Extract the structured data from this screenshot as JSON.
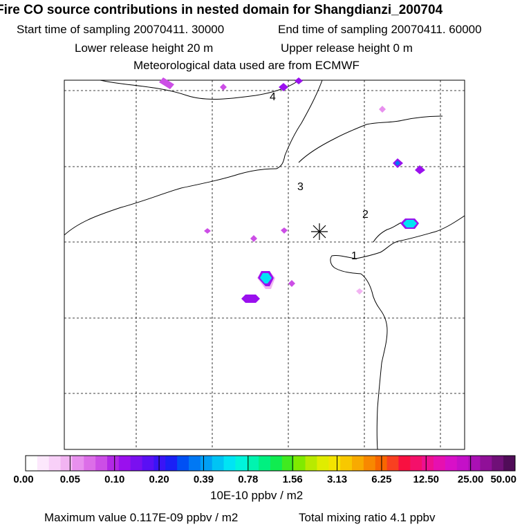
{
  "header": {
    "title": "Fire CO source contributions in nested domain for Shangdianzi_200704",
    "start_time": "Start time of sampling 20070411. 30000",
    "end_time": "End time of sampling 20070411. 60000",
    "lower_release": "Lower release height   20 m",
    "upper_release": "Upper release height    0 m",
    "met_data": "Meteorological data used are from ECMWF"
  },
  "footer": {
    "max_value": "Maximum value  0.117E-09 ppbv / m2",
    "total_mixing": "Total mixing ratio       4.1 ppbv"
  },
  "colorbar": {
    "units": "10E-10 ppbv / m2",
    "labels": [
      "0.00",
      "0.05",
      "0.10",
      "0.20",
      "0.39",
      "0.78",
      "1.56",
      "3.13",
      "6.25",
      "12.50",
      "25.00",
      "50.00"
    ],
    "colors": [
      "#ffffff",
      "#fce8fc",
      "#f8d0f8",
      "#f2b4f2",
      "#e890ee",
      "#dc6ee8",
      "#cc4ee6",
      "#b228e6",
      "#9a10ee",
      "#7a10f0",
      "#5a10f4",
      "#3a14f6",
      "#1a20f6",
      "#0050f4",
      "#0078f4",
      "#00a0f4",
      "#00c4f4",
      "#00e4f4",
      "#00f4dc",
      "#00f4b0",
      "#00f080",
      "#10ec50",
      "#40ea20",
      "#80ea00",
      "#b8ea00",
      "#e0ec00",
      "#f4e400",
      "#f8c800",
      "#f8aa00",
      "#f88800",
      "#f86600",
      "#f84020",
      "#f81040",
      "#f4106a",
      "#ee1090",
      "#e610b0",
      "#d810c8",
      "#c410c8",
      "#aa10b4",
      "#901098",
      "#701078",
      "#500c58"
    ]
  },
  "chart_data": {
    "type": "heatmap",
    "title": "Fire CO source contributions in nested domain for Shangdianzi_200704",
    "value_units": "10E-10 ppbv / m2",
    "receptor": "Shangdianzi",
    "plume_labels": [
      "1",
      "2",
      "3",
      "4"
    ],
    "patches": [
      {
        "level": "0.39-0.78",
        "color": "#00e4f4"
      },
      {
        "level": "0.39-0.78",
        "color": "#00e4f4"
      },
      {
        "level": "0.10-0.20",
        "color": "#9a10ee"
      },
      {
        "level": "0.10-0.20",
        "color": "#9a10ee"
      },
      {
        "level": "0.10-0.20",
        "color": "#9a10ee"
      },
      {
        "level": "0.10-0.20",
        "color": "#9a10ee"
      },
      {
        "level": "0.05-0.10",
        "color": "#cc4ee6"
      },
      {
        "level": "0.05-0.10",
        "color": "#cc4ee6"
      },
      {
        "level": "0.05-0.10",
        "color": "#cc4ee6"
      },
      {
        "level": "0.05-0.10",
        "color": "#cc4ee6"
      },
      {
        "level": "0.05-0.10",
        "color": "#cc4ee6"
      },
      {
        "level": "0.00-0.05",
        "color": "#e890ee"
      },
      {
        "level": "0.00-0.05",
        "color": "#f2b4f2"
      }
    ]
  }
}
